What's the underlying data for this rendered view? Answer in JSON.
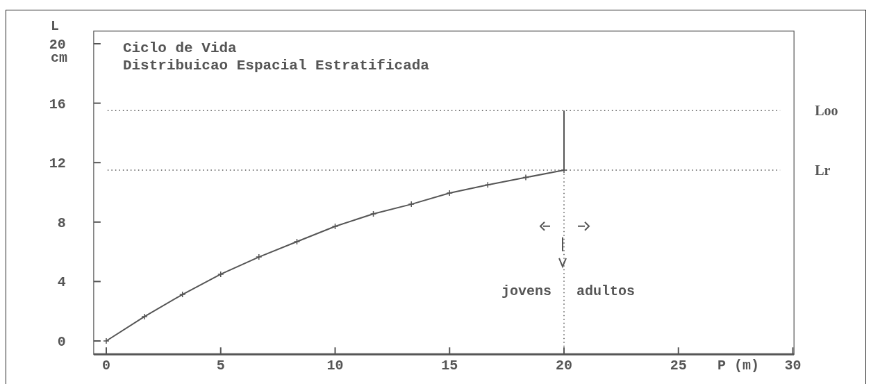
{
  "chart_data": {
    "type": "line",
    "title": "Ciclo de Vida",
    "subtitle": "Distribuicao Espacial Estratificada",
    "ylabel": "L",
    "xlabel": "P (m)",
    "annotations": [
      "cm",
      "jovens",
      "adultos"
    ],
    "xlim": [
      -0.55,
      30.05
    ],
    "xticks": [
      0,
      5,
      10,
      15,
      20,
      25,
      30
    ],
    "ylim": [
      -0.9,
      20.85
    ],
    "yticks": [
      0,
      4,
      8,
      12,
      16,
      20
    ],
    "series": [
      {
        "color": "#555555",
        "marker": "cross",
        "x": [
          0,
          1.67,
          3.33,
          5,
          6.67,
          8.33,
          10,
          11.67,
          13.33,
          15,
          16.67,
          18.33,
          20
        ],
        "values": [
          0,
          1.64,
          3.13,
          4.49,
          5.65,
          6.68,
          7.71,
          8.55,
          9.2,
          9.95,
          10.5,
          11.0,
          11.5
        ]
      },
      {
        "color": "#555555",
        "marker": "none",
        "x": [
          20,
          20
        ],
        "values": [
          11.5,
          15.5
        ]
      },
      {
        "color": "#555555",
        "marker": "none",
        "line_style": "dotted",
        "x": [
          20,
          20
        ],
        "values": [
          -0.9,
          11.5
        ]
      }
    ],
    "ref_lines": [
      {
        "axis": "y",
        "value": 15.5,
        "label": "Loo",
        "line_style": "dotted"
      },
      {
        "axis": "y",
        "value": 11.5,
        "label": "Lr",
        "line_style": "dotted"
      }
    ]
  }
}
